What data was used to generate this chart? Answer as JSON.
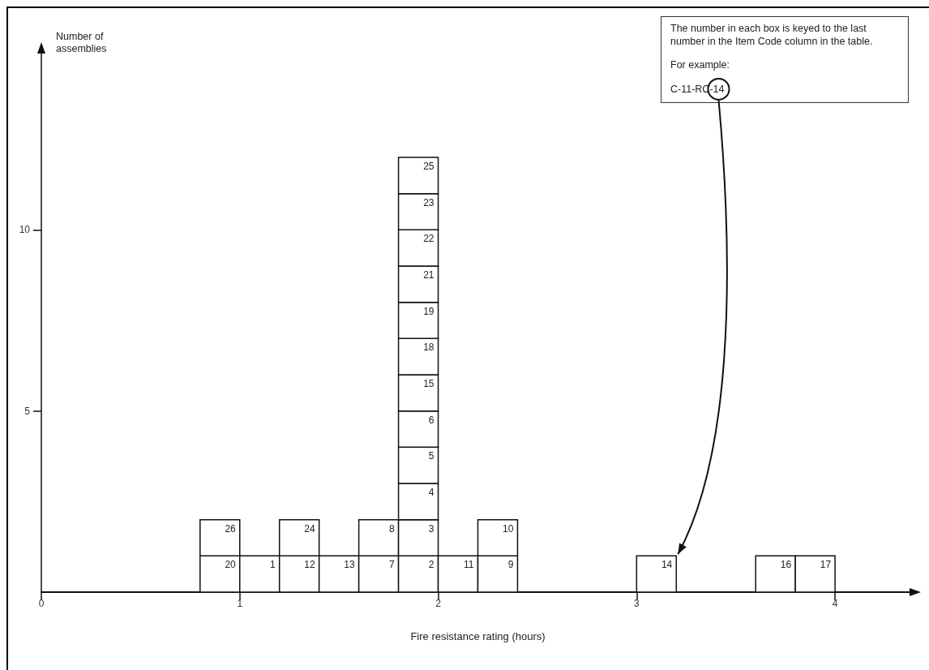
{
  "chart_data": {
    "type": "bar",
    "stacked": true,
    "xlabel": "Fire resistance rating (hours)",
    "ylabel": "Number of assemblies",
    "x": [
      0.9,
      1.1,
      1.3,
      1.5,
      1.7,
      1.9,
      2.1,
      2.3,
      3.1,
      3.7,
      3.9
    ],
    "series": [
      {
        "color": "#ffffff",
        "values": [
          1,
          1,
          1,
          1,
          1,
          1,
          1,
          1,
          1,
          1,
          1
        ]
      },
      {
        "color": "#ffffff",
        "values": [
          1,
          null,
          1,
          null,
          1,
          1,
          null,
          1,
          null,
          null,
          null
        ]
      },
      {
        "color": "#ffffff",
        "values": [
          null,
          null,
          null,
          null,
          null,
          1,
          null,
          null,
          null,
          null,
          null
        ]
      },
      {
        "color": "#ffffff",
        "values": [
          null,
          null,
          null,
          null,
          null,
          1,
          null,
          null,
          null,
          null,
          null
        ]
      },
      {
        "color": "#ffffff",
        "values": [
          null,
          null,
          null,
          null,
          null,
          1,
          null,
          null,
          null,
          null,
          null
        ]
      },
      {
        "color": "#ffffff",
        "values": [
          null,
          null,
          null,
          null,
          null,
          1,
          null,
          null,
          null,
          null,
          null
        ]
      },
      {
        "color": "#ffffff",
        "values": [
          null,
          null,
          null,
          null,
          null,
          1,
          null,
          null,
          null,
          null,
          null
        ]
      },
      {
        "color": "#ffffff",
        "values": [
          null,
          null,
          null,
          null,
          null,
          1,
          null,
          null,
          null,
          null,
          null
        ]
      },
      {
        "color": "#ffffff",
        "values": [
          null,
          null,
          null,
          null,
          null,
          1,
          null,
          null,
          null,
          null,
          null
        ]
      },
      {
        "color": "#ffffff",
        "values": [
          null,
          null,
          null,
          null,
          null,
          1,
          null,
          null,
          null,
          null,
          null
        ]
      },
      {
        "color": "#ffffff",
        "values": [
          null,
          null,
          null,
          null,
          null,
          1,
          null,
          null,
          null,
          null,
          null
        ]
      },
      {
        "color": "#ffffff",
        "values": [
          null,
          null,
          null,
          null,
          null,
          1,
          null,
          null,
          null,
          null,
          null
        ]
      }
    ],
    "xlim": [
      0,
      4.4
    ],
    "xticks": [
      0,
      1,
      2,
      3,
      4
    ],
    "ylim": [
      0,
      15
    ],
    "yticks": [
      5,
      10
    ],
    "annotations": [
      "The number in each box is keyed to the last number in the Item Code column in the table.",
      "For example:",
      {
        "text": "C-11-RC-14",
        "x": 3.2,
        "y": 1
      },
      {
        "text": "20",
        "x": 0.9,
        "y": 1
      },
      {
        "text": "1",
        "x": 1.1,
        "y": 1
      },
      {
        "text": "12",
        "x": 1.3,
        "y": 1
      },
      {
        "text": "13",
        "x": 1.5,
        "y": 1
      },
      {
        "text": "7",
        "x": 1.7,
        "y": 1
      },
      {
        "text": "2",
        "x": 1.9,
        "y": 1
      },
      {
        "text": "11",
        "x": 2.1,
        "y": 1
      },
      {
        "text": "9",
        "x": 2.3,
        "y": 1
      },
      {
        "text": "14",
        "x": 3.1,
        "y": 1
      },
      {
        "text": "16",
        "x": 3.7,
        "y": 1
      },
      {
        "text": "17",
        "x": 3.9,
        "y": 1
      },
      {
        "text": "26",
        "x": 0.9,
        "y": 2
      },
      {
        "text": "24",
        "x": 1.3,
        "y": 2
      },
      {
        "text": "8",
        "x": 1.7,
        "y": 2
      },
      {
        "text": "3",
        "x": 1.9,
        "y": 2
      },
      {
        "text": "10",
        "x": 2.3,
        "y": 2
      },
      {
        "text": "4",
        "x": 1.9,
        "y": 3
      },
      {
        "text": "5",
        "x": 1.9,
        "y": 4
      },
      {
        "text": "6",
        "x": 1.9,
        "y": 5
      },
      {
        "text": "15",
        "x": 1.9,
        "y": 6
      },
      {
        "text": "18",
        "x": 1.9,
        "y": 7
      },
      {
        "text": "19",
        "x": 1.9,
        "y": 8
      },
      {
        "text": "21",
        "x": 1.9,
        "y": 9
      },
      {
        "text": "22",
        "x": 1.9,
        "y": 10
      },
      {
        "text": "23",
        "x": 1.9,
        "y": 11
      },
      {
        "text": "25",
        "x": 1.9,
        "y": 12
      }
    ]
  }
}
